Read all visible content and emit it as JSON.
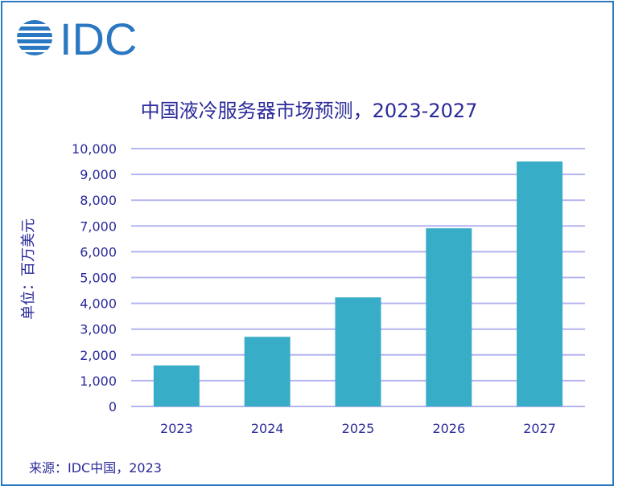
{
  "logo": {
    "text": "IDC",
    "color": "#2b78c2"
  },
  "source": "来源：IDC中国，2023",
  "chart_data": {
    "type": "bar",
    "title": "中国液冷服务器市场预测，2023-2027",
    "ylabel": "单位：百万美元",
    "xlabel": "",
    "categories": [
      "2023",
      "2024",
      "2025",
      "2026",
      "2027"
    ],
    "values": [
      1590,
      2700,
      4230,
      6910,
      9500
    ],
    "ylim": [
      0,
      10000
    ],
    "yticks": [
      "0",
      "1,000",
      "2,000",
      "3,000",
      "4,000",
      "5,000",
      "6,000",
      "7,000",
      "8,000",
      "9,000",
      "10,000"
    ],
    "grid": true,
    "bar_color": "#38adc8",
    "grid_color": "#b4b4f0"
  }
}
